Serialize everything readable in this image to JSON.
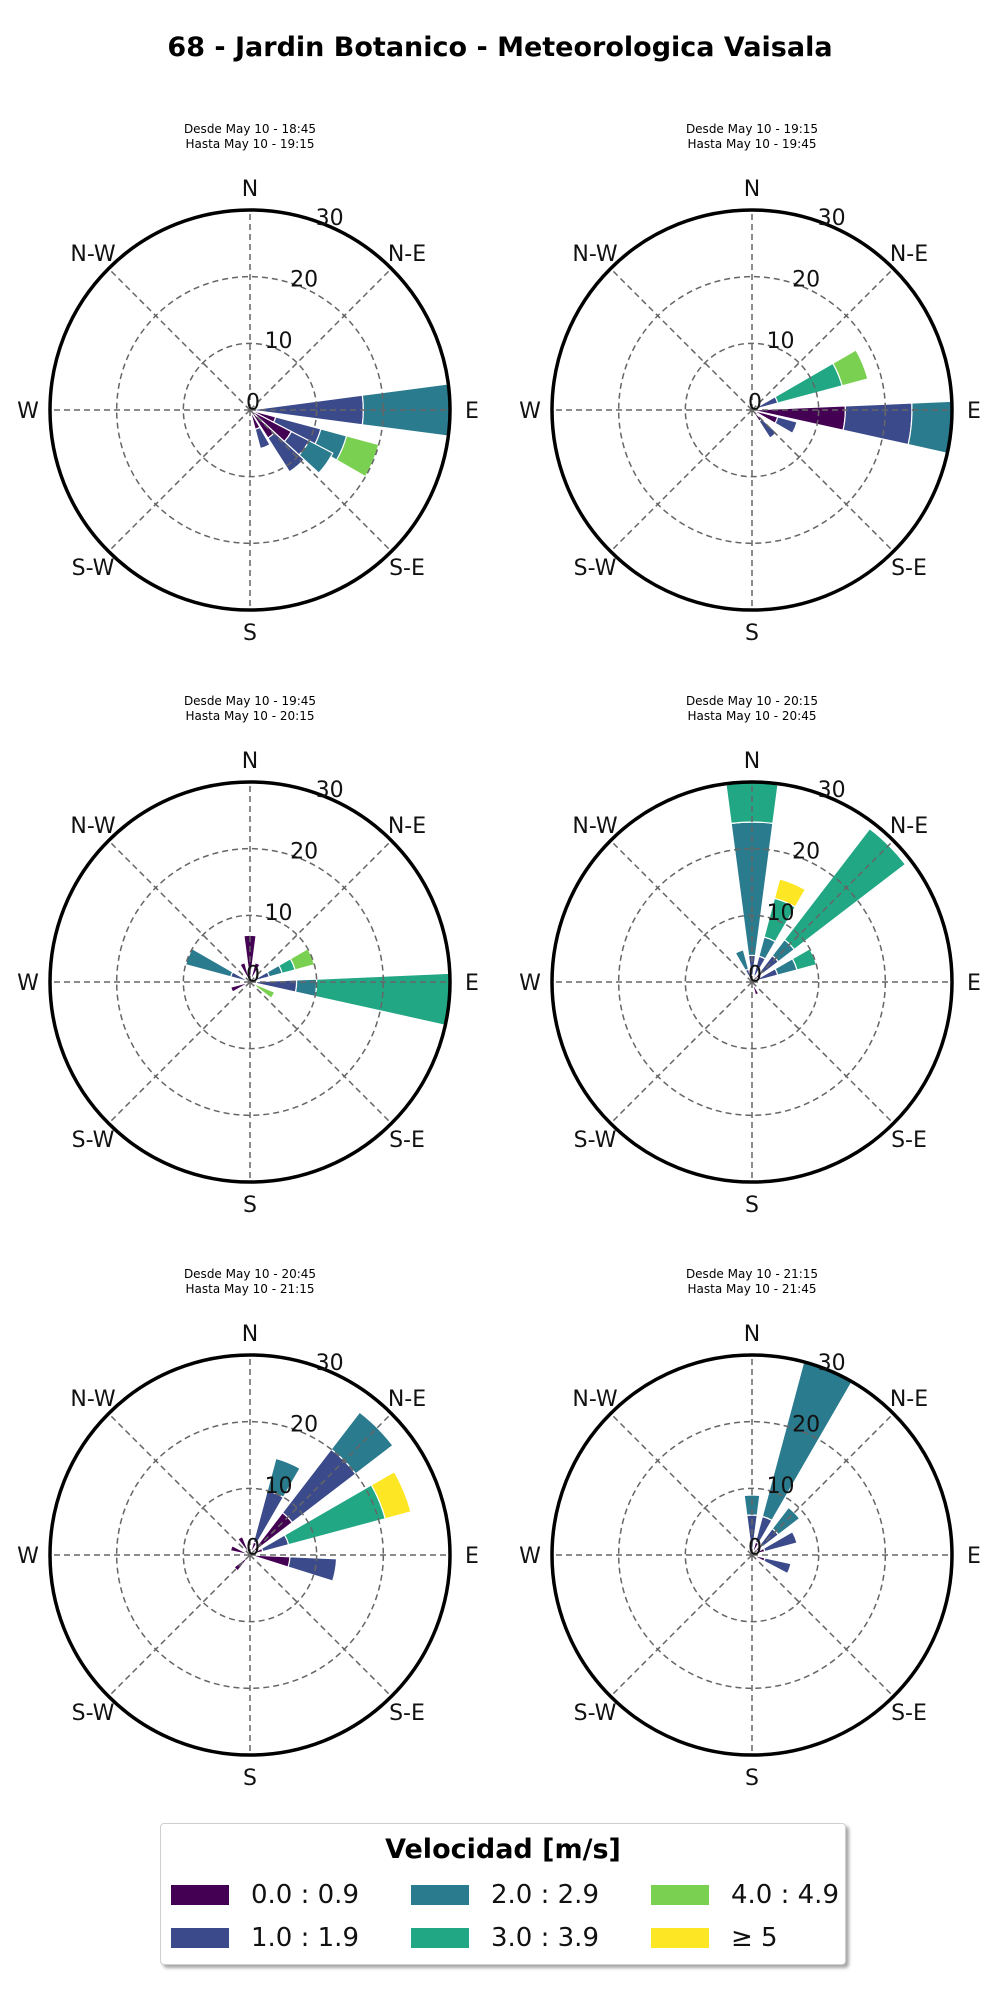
{
  "title": "68 - Jardin Botanico - Meteorologica Vaisala",
  "legend": {
    "title": "Velocidad [m/s]",
    "items": [
      {
        "label": "0.0 : 0.9",
        "color": "#440154"
      },
      {
        "label": "1.0 : 1.9",
        "color": "#3b4a8a"
      },
      {
        "label": "2.0 : 2.9",
        "color": "#2b7b8e"
      },
      {
        "label": "3.0 : 3.9",
        "color": "#21a784"
      },
      {
        "label": "4.0 : 4.9",
        "color": "#7ad151"
      },
      {
        "label": "≥  5",
        "color": "#fde725"
      }
    ]
  },
  "chart_data": [
    {
      "type": "windrose",
      "title": "Desde May 10 - 18:45\nHasta May 10 - 19:15",
      "directions": [
        "N",
        "N-E",
        "E",
        "S-E",
        "S",
        "S-W",
        "W",
        "N-W"
      ],
      "r_ticks": [
        0,
        10,
        20,
        30
      ],
      "rlim": [
        0,
        30
      ],
      "grid": true,
      "bars": [
        {
          "dir_deg": 90,
          "segments": [
            0,
            17,
            13,
            0,
            0,
            0
          ]
        },
        {
          "dir_deg": 112.5,
          "segments": [
            4,
            7,
            4,
            0,
            5,
            0
          ]
        },
        {
          "dir_deg": 125,
          "segments": [
            7,
            3,
            4,
            0,
            0,
            0
          ]
        },
        {
          "dir_deg": 140,
          "segments": [
            5,
            6,
            0,
            0,
            0,
            0
          ]
        },
        {
          "dir_deg": 157.5,
          "segments": [
            3,
            3,
            0,
            0,
            0,
            0
          ]
        }
      ]
    },
    {
      "type": "windrose",
      "title": "Desde May 10 - 19:15\nHasta May 10 - 19:45",
      "directions": [
        "N",
        "N-E",
        "E",
        "S-E",
        "S",
        "S-W",
        "W",
        "N-W"
      ],
      "r_ticks": [
        0,
        10,
        20,
        30
      ],
      "rlim": [
        0,
        30
      ],
      "grid": true,
      "bars": [
        {
          "dir_deg": 67.5,
          "segments": [
            1,
            3,
            0,
            10,
            4,
            0
          ]
        },
        {
          "dir_deg": 95,
          "segments": [
            14,
            10,
            7,
            0,
            0,
            0
          ]
        },
        {
          "dir_deg": 112.5,
          "segments": [
            4,
            3,
            0,
            0,
            0,
            0
          ]
        },
        {
          "dir_deg": 140,
          "segments": [
            2,
            3,
            0,
            0,
            0,
            0
          ]
        }
      ]
    },
    {
      "type": "windrose",
      "title": "Desde May 10 - 19:45\nHasta May 10 - 20:15",
      "directions": [
        "N",
        "N-E",
        "E",
        "S-E",
        "S",
        "S-W",
        "W",
        "N-W"
      ],
      "r_ticks": [
        0,
        10,
        20,
        30
      ],
      "rlim": [
        0,
        30
      ],
      "grid": true,
      "bars": [
        {
          "dir_deg": 0,
          "segments": [
            7,
            0,
            0,
            0,
            0,
            0
          ]
        },
        {
          "dir_deg": 22.5,
          "segments": [
            3,
            0,
            0,
            0,
            0,
            0
          ]
        },
        {
          "dir_deg": 67.5,
          "segments": [
            0,
            3,
            2,
            2,
            3,
            0
          ]
        },
        {
          "dir_deg": 95,
          "segments": [
            1,
            6,
            3,
            20,
            0,
            0
          ]
        },
        {
          "dir_deg": 120,
          "segments": [
            0,
            0,
            1,
            0,
            3,
            0
          ]
        },
        {
          "dir_deg": 247.5,
          "segments": [
            3,
            0,
            0,
            0,
            0,
            0
          ]
        },
        {
          "dir_deg": 292.5,
          "segments": [
            0,
            3,
            7,
            0,
            0,
            0
          ]
        },
        {
          "dir_deg": 337.5,
          "segments": [
            3,
            0,
            0,
            0,
            0,
            0
          ]
        }
      ]
    },
    {
      "type": "windrose",
      "title": "Desde May 10 - 20:15\nHasta May 10 - 20:45",
      "directions": [
        "N",
        "N-E",
        "E",
        "S-E",
        "S",
        "S-W",
        "W",
        "N-W"
      ],
      "r_ticks": [
        0,
        10,
        20,
        30
      ],
      "rlim": [
        0,
        30
      ],
      "grid": true,
      "bars": [
        {
          "dir_deg": 0,
          "segments": [
            1,
            3,
            20,
            7,
            0,
            0
          ]
        },
        {
          "dir_deg": 22.5,
          "segments": [
            1,
            3,
            3,
            6,
            0,
            3
          ]
        },
        {
          "dir_deg": 45,
          "segments": [
            2,
            3,
            3,
            21,
            0,
            0
          ]
        },
        {
          "dir_deg": 67.5,
          "segments": [
            0,
            4,
            3,
            3,
            0,
            0
          ]
        },
        {
          "dir_deg": 157.5,
          "segments": [
            2,
            0,
            0,
            0,
            0,
            0
          ]
        },
        {
          "dir_deg": 337.5,
          "segments": [
            0,
            2,
            3,
            0,
            0,
            0
          ]
        }
      ]
    },
    {
      "type": "windrose",
      "title": "Desde May 10 - 20:45\nHasta May 10 - 21:15",
      "directions": [
        "N",
        "N-E",
        "E",
        "S-E",
        "S",
        "S-W",
        "W",
        "N-W"
      ],
      "r_ticks": [
        0,
        10,
        20,
        30
      ],
      "rlim": [
        0,
        30
      ],
      "grid": true,
      "bars": [
        {
          "dir_deg": 22.5,
          "segments": [
            2,
            8,
            5,
            0,
            0,
            0
          ]
        },
        {
          "dir_deg": 45,
          "segments": [
            8,
            12,
            7,
            0,
            0,
            0
          ]
        },
        {
          "dir_deg": 67.5,
          "segments": [
            2,
            4,
            0,
            15,
            0,
            4
          ]
        },
        {
          "dir_deg": 100,
          "segments": [
            6,
            7,
            0,
            0,
            0,
            0
          ]
        },
        {
          "dir_deg": 225,
          "segments": [
            3,
            0,
            0,
            0,
            0,
            0
          ]
        },
        {
          "dir_deg": 290,
          "segments": [
            3,
            0,
            0,
            0,
            0,
            0
          ]
        },
        {
          "dir_deg": 330,
          "segments": [
            3,
            0,
            0,
            0,
            0,
            0
          ]
        }
      ]
    },
    {
      "type": "windrose",
      "title": "Desde May 10 - 21:15\nHasta May 10 - 21:45",
      "directions": [
        "N",
        "N-E",
        "E",
        "S-E",
        "S",
        "S-W",
        "W",
        "N-W"
      ],
      "r_ticks": [
        0,
        10,
        20,
        30
      ],
      "rlim": [
        0,
        30
      ],
      "grid": true,
      "bars": [
        {
          "dir_deg": 0,
          "segments": [
            0,
            6,
            3,
            0,
            0,
            0
          ]
        },
        {
          "dir_deg": 22.5,
          "segments": [
            2,
            4,
            25,
            0,
            0,
            0
          ]
        },
        {
          "dir_deg": 45,
          "segments": [
            2,
            3,
            4,
            0,
            0,
            0
          ]
        },
        {
          "dir_deg": 67.5,
          "segments": [
            2,
            5,
            0,
            0,
            0,
            0
          ]
        },
        {
          "dir_deg": 110,
          "segments": [
            2,
            4,
            0,
            0,
            0,
            0
          ]
        }
      ]
    }
  ]
}
